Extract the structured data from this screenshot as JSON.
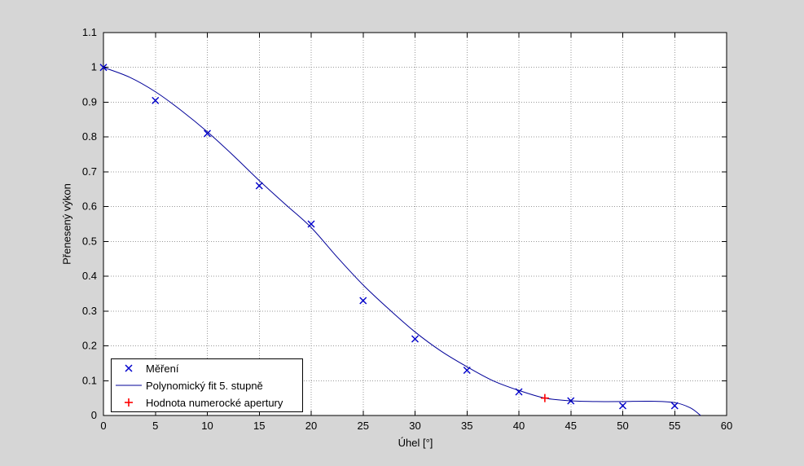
{
  "figure": {
    "background": "#d6d6d6"
  },
  "chart_data": {
    "type": "line",
    "title": "",
    "xlabel": "Úhel [°]",
    "ylabel": "Přenesený výkon",
    "xlim": [
      0,
      60
    ],
    "ylim": [
      0,
      1.1
    ],
    "xticks": [
      0,
      5,
      10,
      15,
      20,
      25,
      30,
      35,
      40,
      45,
      50,
      55,
      60
    ],
    "xticklabels": [
      "0",
      "5",
      "10",
      "15",
      "20",
      "25",
      "30",
      "35",
      "40",
      "45",
      "50",
      "55",
      "60"
    ],
    "yticks": [
      0,
      0.1,
      0.2,
      0.3,
      0.4,
      0.5,
      0.6,
      0.7,
      0.8,
      0.9,
      1,
      1.1
    ],
    "yticklabels": [
      "0",
      "0.1",
      "0.2",
      "0.3",
      "0.4",
      "0.5",
      "0.6",
      "0.7",
      "0.8",
      "0.9",
      "1",
      "1.1"
    ],
    "grid": true,
    "legend_position": "lower-left",
    "colors": {
      "axis": "#000000",
      "grid": "#999999",
      "plot_bg": "#ffffff"
    },
    "series": [
      {
        "name": "Měření",
        "type": "scatter",
        "marker": "x",
        "color": "#0000cc",
        "x": [
          0,
          5,
          10,
          15,
          20,
          25,
          30,
          35,
          40,
          45,
          50,
          55
        ],
        "y": [
          1.0,
          0.905,
          0.81,
          0.66,
          0.55,
          0.33,
          0.22,
          0.13,
          0.068,
          0.042,
          0.028,
          0.028
        ]
      },
      {
        "name": "Polynomický fit 5. stupně",
        "type": "line",
        "color": "#000099",
        "x": [
          0,
          2.5,
          5,
          7.5,
          10,
          12.5,
          15,
          17.5,
          20,
          22.5,
          25,
          27.5,
          30,
          32.5,
          35,
          37.5,
          40,
          42.5,
          45,
          47.5,
          50,
          52.5,
          55,
          56.5,
          57.5
        ],
        "y": [
          1.0,
          0.972,
          0.93,
          0.876,
          0.815,
          0.747,
          0.675,
          0.607,
          0.54,
          0.455,
          0.375,
          0.305,
          0.24,
          0.185,
          0.14,
          0.1,
          0.072,
          0.05,
          0.042,
          0.04,
          0.04,
          0.041,
          0.037,
          0.022,
          0.0
        ]
      },
      {
        "name": "Hodnota numerocké apertury",
        "type": "scatter",
        "marker": "+",
        "color": "#ff0000",
        "x": [
          42.5
        ],
        "y": [
          0.05
        ]
      }
    ]
  }
}
